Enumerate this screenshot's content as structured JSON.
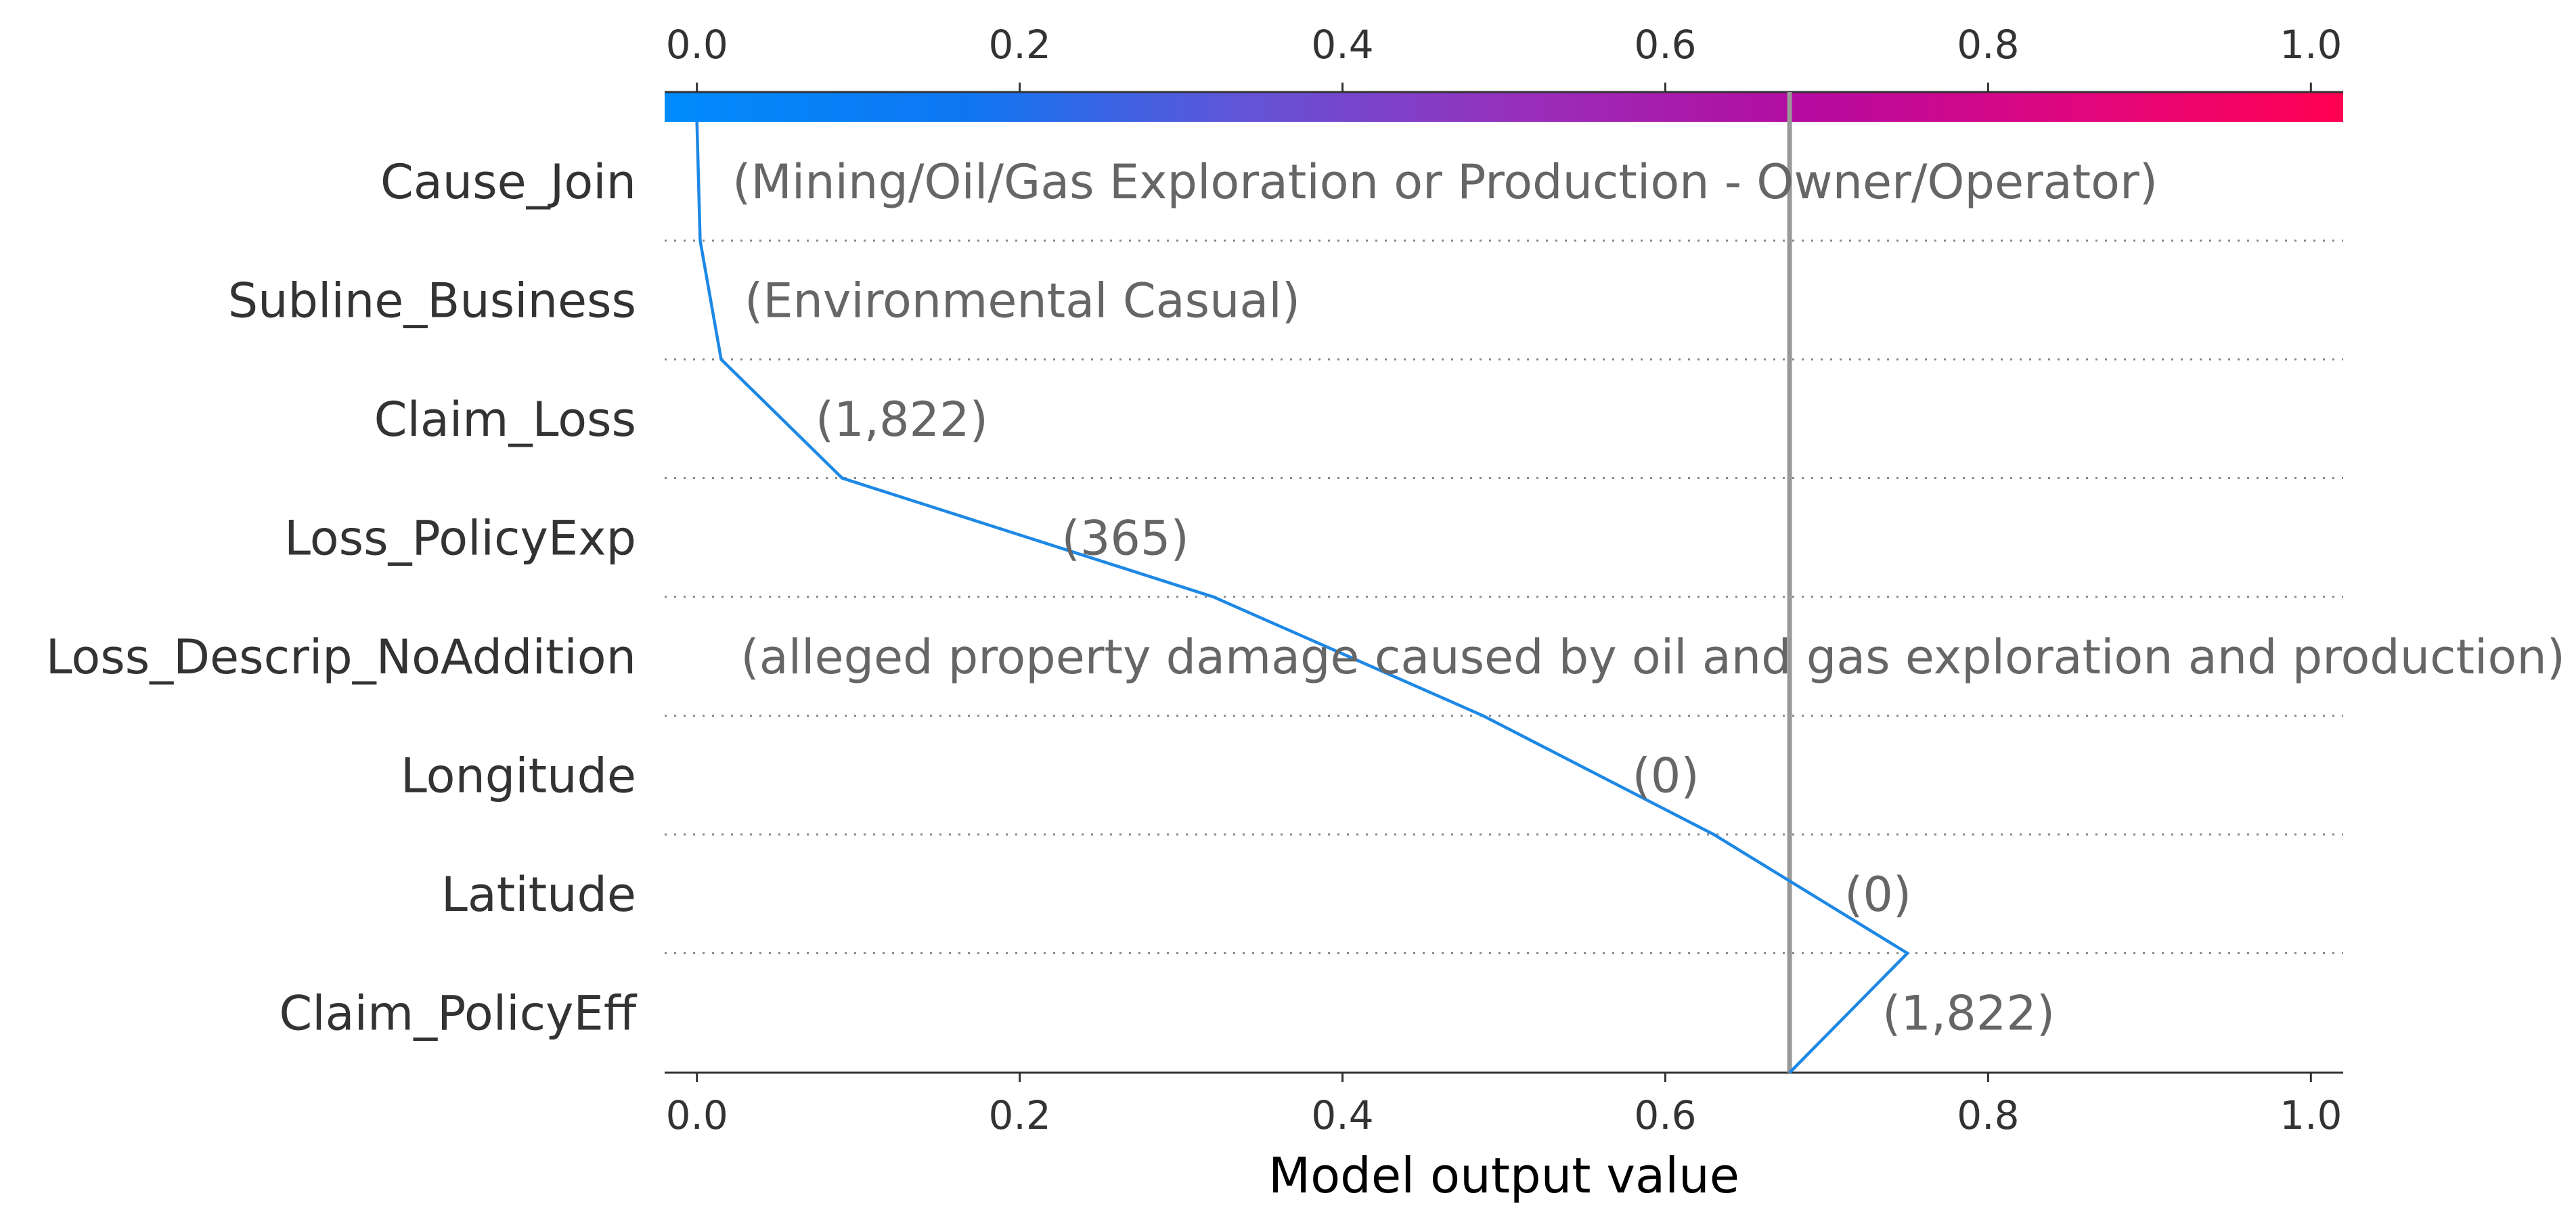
{
  "chart_data": {
    "type": "line",
    "subtype": "shap-decision-plot",
    "xlabel": "Model output value",
    "xlim": [
      -0.02,
      1.02
    ],
    "xticks": [
      0.0,
      0.2,
      0.4,
      0.6,
      0.8,
      1.0
    ],
    "xtick_labels": [
      "0.0",
      "0.2",
      "0.4",
      "0.6",
      "0.8",
      "1.0"
    ],
    "base_value": 0.677,
    "grid": "dotted horizontal",
    "colorbar": {
      "position": "top",
      "from": "#008bfb",
      "to": "#ff0051"
    },
    "line_color": "#1e88e5",
    "features": [
      {
        "name": "Cause_Join",
        "value": "(Mining/Oil/Gas Exploration or Production - Owner/Operator)",
        "x_upper": 0.0
      },
      {
        "name": "Subline_Business",
        "value": "(Environmental Casual)",
        "x_upper": 0.002
      },
      {
        "name": "Claim_Loss",
        "value": "(1,822)",
        "x_upper": 0.015
      },
      {
        "name": "Loss_PolicyExp",
        "value": "(365)",
        "x_upper": 0.09
      },
      {
        "name": "Loss_Descrip_NoAddition",
        "value": "(alleged property damage caused by oil and gas exploration and production)",
        "x_upper": 0.32
      },
      {
        "name": "Longitude",
        "value": "(0)",
        "x_upper": 0.487
      },
      {
        "name": "Latitude",
        "value": "(0)",
        "x_upper": 0.63
      },
      {
        "name": "Claim_PolicyEff",
        "value": "(1,822)",
        "x_upper": 0.75
      }
    ],
    "output_value": 0.677
  }
}
